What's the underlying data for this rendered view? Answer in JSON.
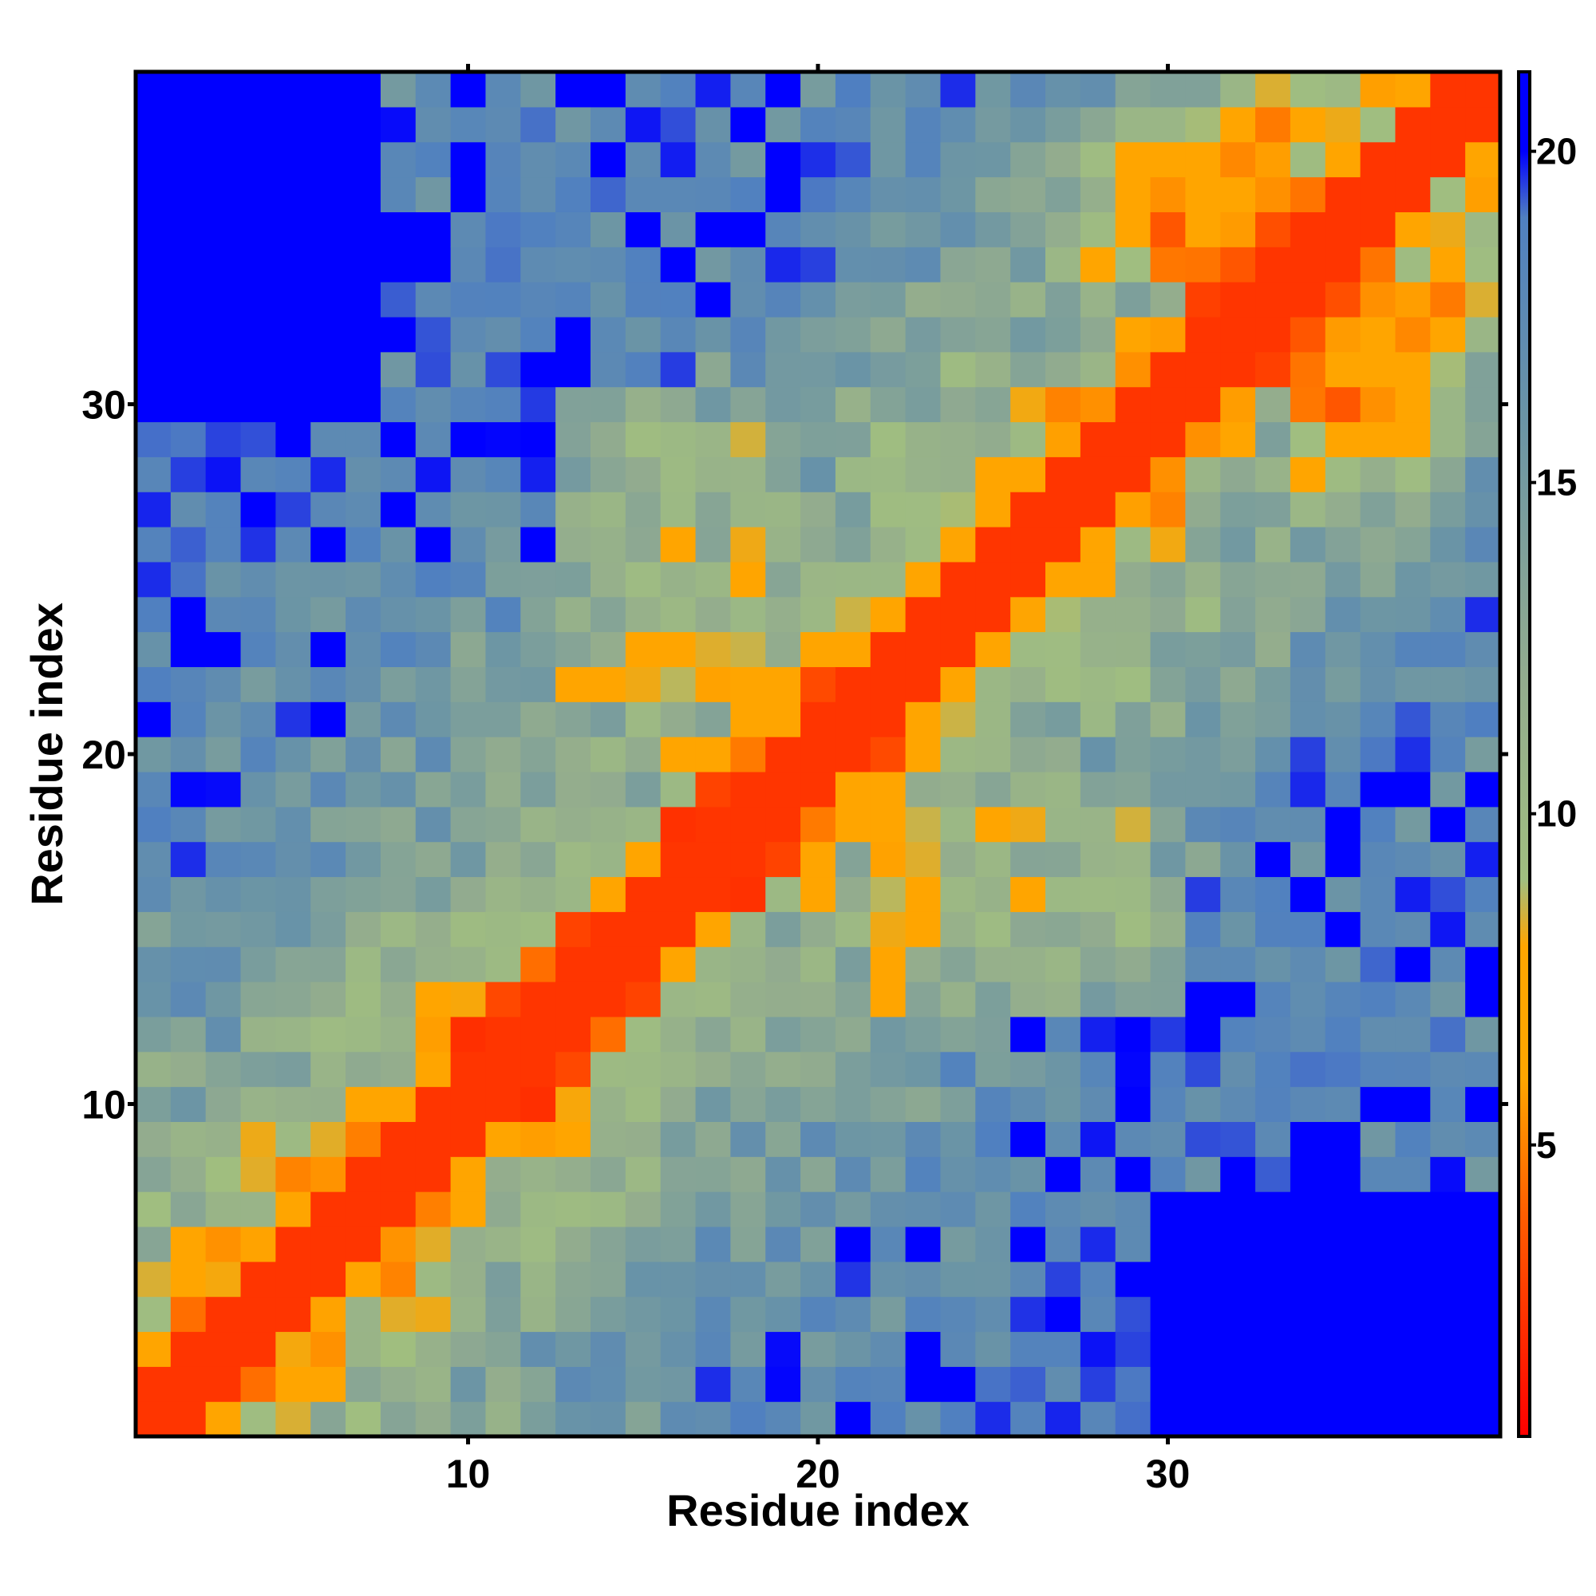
{
  "chart_data": {
    "type": "heatmap",
    "title": "",
    "xlabel": "Residue index",
    "ylabel": "Residue index",
    "n": 39,
    "xlim": [
      0.5,
      39.5
    ],
    "ylim": [
      0.5,
      39.5
    ],
    "x_ticks": [
      10,
      20,
      30
    ],
    "y_ticks": [
      10,
      20,
      30
    ],
    "colorbar": {
      "ticks": [
        5,
        10,
        15,
        20
      ],
      "range": [
        0.6,
        21.2
      ],
      "stops": [
        {
          "value": 0.6,
          "color": "#ff0000"
        },
        {
          "value": 4.0,
          "color": "#ff5f00"
        },
        {
          "value": 6.0,
          "color": "#ffa500"
        },
        {
          "value": 8.0,
          "color": "#ffa500"
        },
        {
          "value": 9.0,
          "color": "#a0be80"
        },
        {
          "value": 12.0,
          "color": "#93ac8e"
        },
        {
          "value": 16.0,
          "color": "#6a94a6"
        },
        {
          "value": 19.0,
          "color": "#5080c0"
        },
        {
          "value": 20.0,
          "color": "#0000ff"
        },
        {
          "value": 21.2,
          "color": "#0000ff"
        }
      ]
    },
    "cap_value": 20,
    "matrix_note": "distance between residue i and j; symmetric, values > cap shown as blue"
  },
  "colors": {
    "contact": "#ff0000",
    "near": "#ffa500",
    "mid": "#93ac8e",
    "far": "#5080c0",
    "cap": "#0000ff",
    "frame": "#000000"
  }
}
